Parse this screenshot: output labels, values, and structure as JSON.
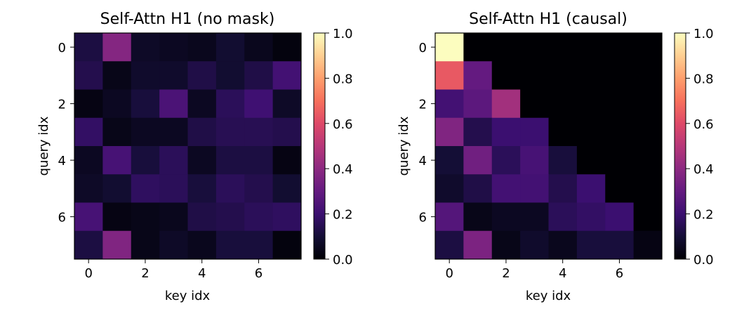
{
  "chart_data": [
    {
      "type": "heatmap",
      "title": "Self-Attn H1 (no mask)",
      "xlabel": "key idx",
      "ylabel": "query idx",
      "x_ticks": [
        0,
        2,
        4,
        6
      ],
      "y_ticks": [
        0,
        2,
        4,
        6
      ],
      "colormap": "magma",
      "clim": [
        0,
        1
      ],
      "colorbar_ticks": [
        "0.0",
        "0.2",
        "0.4",
        "0.6",
        "0.8",
        "1.0"
      ],
      "values": [
        [
          0.12,
          0.38,
          0.07,
          0.06,
          0.05,
          0.09,
          0.05,
          0.02
        ],
        [
          0.14,
          0.04,
          0.08,
          0.08,
          0.13,
          0.09,
          0.13,
          0.22
        ],
        [
          0.03,
          0.06,
          0.11,
          0.24,
          0.06,
          0.16,
          0.21,
          0.07
        ],
        [
          0.18,
          0.04,
          0.06,
          0.06,
          0.13,
          0.15,
          0.15,
          0.14
        ],
        [
          0.06,
          0.23,
          0.11,
          0.16,
          0.06,
          0.12,
          0.12,
          0.03
        ],
        [
          0.07,
          0.09,
          0.17,
          0.16,
          0.11,
          0.16,
          0.14,
          0.09
        ],
        [
          0.23,
          0.03,
          0.04,
          0.05,
          0.13,
          0.14,
          0.16,
          0.17
        ],
        [
          0.12,
          0.37,
          0.04,
          0.07,
          0.05,
          0.11,
          0.11,
          0.02
        ]
      ]
    },
    {
      "type": "heatmap",
      "title": "Self-Attn H1 (causal)",
      "xlabel": "key idx",
      "ylabel": "query idx",
      "x_ticks": [
        0,
        2,
        4,
        6
      ],
      "y_ticks": [
        0,
        2,
        4,
        6
      ],
      "colormap": "magma",
      "clim": [
        0,
        1
      ],
      "colorbar_ticks": [
        "0.0",
        "0.2",
        "0.4",
        "0.6",
        "0.8",
        "1.0"
      ],
      "values": [
        [
          1.0,
          0,
          0,
          0,
          0,
          0,
          0,
          0
        ],
        [
          0.64,
          0.3,
          0,
          0,
          0,
          0,
          0,
          0
        ],
        [
          0.22,
          0.28,
          0.45,
          0,
          0,
          0,
          0,
          0
        ],
        [
          0.37,
          0.14,
          0.2,
          0.2,
          0,
          0,
          0,
          0
        ],
        [
          0.1,
          0.33,
          0.16,
          0.23,
          0.11,
          0,
          0,
          0
        ],
        [
          0.08,
          0.13,
          0.22,
          0.22,
          0.14,
          0.2,
          0,
          0
        ],
        [
          0.26,
          0.04,
          0.06,
          0.06,
          0.16,
          0.18,
          0.2,
          0
        ],
        [
          0.12,
          0.36,
          0.04,
          0.08,
          0.05,
          0.11,
          0.11,
          0.03
        ]
      ]
    }
  ]
}
